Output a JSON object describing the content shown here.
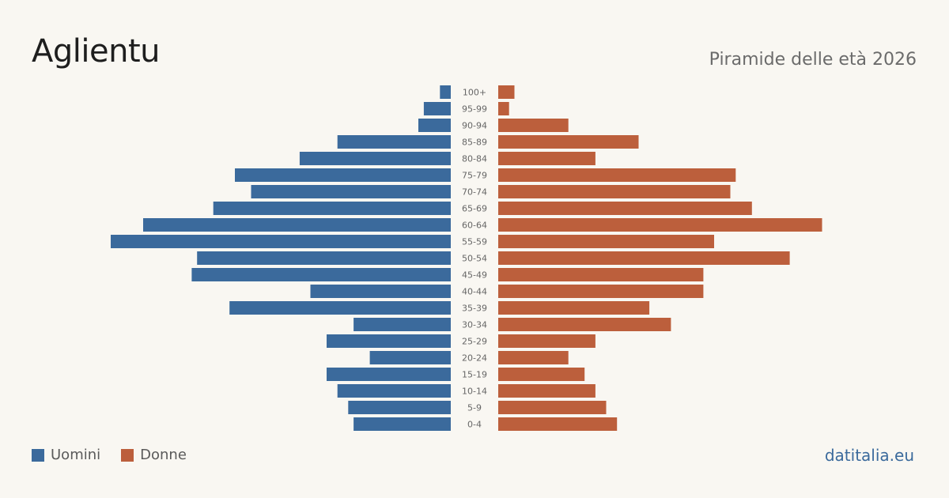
{
  "header": {
    "title": "Aglientu",
    "subtitle": "Piramide delle età 2026"
  },
  "legend": {
    "men_label": "Uomini",
    "women_label": "Donne"
  },
  "brand": "datitalia.eu",
  "colors": {
    "men": "#3b6a9c",
    "women": "#bc5f3c",
    "background": "#f9f7f2",
    "tick_label": "#666666"
  },
  "chart_data": {
    "type": "bar",
    "orientation": "horizontal-pyramid",
    "categories": [
      "100+",
      "95-99",
      "90-94",
      "85-89",
      "80-84",
      "75-79",
      "70-74",
      "65-69",
      "60-64",
      "55-59",
      "50-54",
      "45-49",
      "40-44",
      "35-39",
      "30-34",
      "25-29",
      "20-24",
      "15-19",
      "10-14",
      "5-9",
      "0-4"
    ],
    "series": [
      {
        "name": "Uomini",
        "values": [
          1,
          2.5,
          3,
          10.5,
          14,
          20,
          18.5,
          22,
          28.5,
          31.5,
          23.5,
          24,
          13,
          20.5,
          9,
          11.5,
          7.5,
          11.5,
          10.5,
          9.5,
          9
        ]
      },
      {
        "name": "Donne",
        "values": [
          1.5,
          1,
          6.5,
          13,
          9,
          22,
          21.5,
          23.5,
          30,
          20,
          27,
          19,
          19,
          14,
          16,
          9,
          6.5,
          8,
          9,
          10,
          11
        ]
      }
    ],
    "xlim": [
      0,
      31.5
    ],
    "title": "",
    "xlabel": "",
    "ylabel": ""
  }
}
